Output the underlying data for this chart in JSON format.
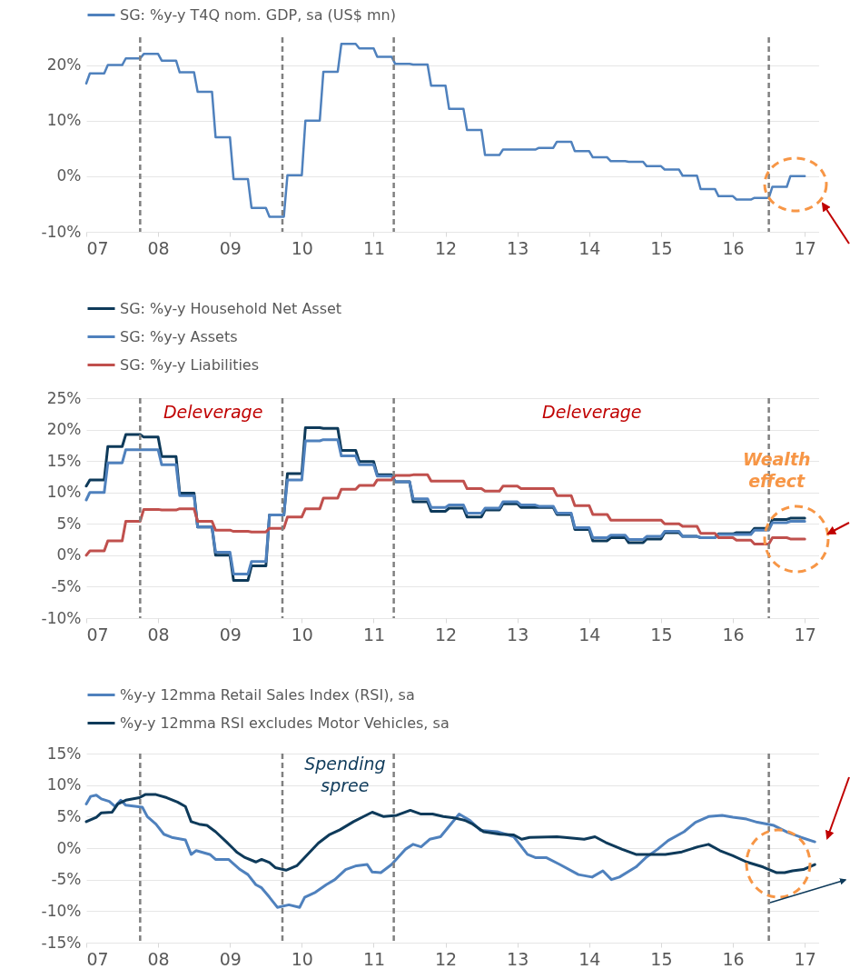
{
  "chart_data": [
    {
      "type": "line",
      "xlim": [
        2007,
        2017.2
      ],
      "ylim": [
        -10,
        25
      ],
      "xticks": [
        {
          "value": 2007,
          "label": "07"
        },
        {
          "value": 2008,
          "label": "08"
        },
        {
          "value": 2009,
          "label": "09"
        },
        {
          "value": 2010,
          "label": "10"
        },
        {
          "value": 2011,
          "label": "11"
        },
        {
          "value": 2012,
          "label": "12"
        },
        {
          "value": 2013,
          "label": "13"
        },
        {
          "value": 2014,
          "label": "14"
        },
        {
          "value": 2015,
          "label": "15"
        },
        {
          "value": 2016,
          "label": "16"
        },
        {
          "value": 2017,
          "label": "17"
        }
      ],
      "yticks": [
        {
          "value": -10,
          "label": "-10%"
        },
        {
          "value": 0,
          "label": "0%"
        },
        {
          "value": 10,
          "label": "10%"
        },
        {
          "value": 20,
          "label": "20%"
        }
      ],
      "grid": "y",
      "legend": "top",
      "line_style": "solid",
      "x": [
        2007,
        2007.05,
        2007.25,
        2007.3,
        2007.5,
        2007.55,
        2007.75,
        2007.8,
        2008,
        2008.05,
        2008.25,
        2008.3,
        2008.5,
        2008.55,
        2008.75,
        2008.8,
        2009,
        2009.05,
        2009.25,
        2009.3,
        2009.5,
        2009.55,
        2009.75,
        2009.8,
        2010,
        2010.05,
        2010.25,
        2010.3,
        2010.5,
        2010.55,
        2010.75,
        2010.8,
        2011,
        2011.05,
        2011.25,
        2011.3,
        2011.5,
        2011.55,
        2011.75,
        2011.8,
        2012,
        2012.05,
        2012.25,
        2012.3,
        2012.5,
        2012.55,
        2012.75,
        2012.8,
        2013,
        2013.05,
        2013.25,
        2013.3,
        2013.5,
        2013.55,
        2013.75,
        2013.8,
        2014,
        2014.05,
        2014.25,
        2014.3,
        2014.5,
        2014.55,
        2014.75,
        2014.8,
        2015,
        2015.05,
        2015.25,
        2015.3,
        2015.5,
        2015.55,
        2015.75,
        2015.8,
        2016,
        2016.05,
        2016.25,
        2016.3,
        2016.5,
        2016.55,
        2016.75,
        2016.8,
        2017
      ],
      "series": [
        {
          "name": "SG: %y-y T4Q nom. GDP, sa (US$ mn)",
          "color": "#4f81bd",
          "values": [
            16.7,
            18.5,
            18.5,
            20,
            20,
            21.2,
            21.2,
            22,
            22,
            20.8,
            20.8,
            18.7,
            18.7,
            15.2,
            15.2,
            7,
            7,
            -0.5,
            -0.5,
            -5.7,
            -5.7,
            -7.3,
            -7.3,
            0.2,
            0.2,
            10,
            10,
            18.8,
            18.8,
            23.8,
            23.8,
            23,
            23,
            21.5,
            21.5,
            20.2,
            20.2,
            20.1,
            20.1,
            16.3,
            16.3,
            12.1,
            12.1,
            8.3,
            8.3,
            3.8,
            3.8,
            4.8,
            4.8,
            4.8,
            4.8,
            5.1,
            5.1,
            6.2,
            6.2,
            4.5,
            4.5,
            3.4,
            3.4,
            2.7,
            2.7,
            2.6,
            2.6,
            1.8,
            1.8,
            1.2,
            1.2,
            0.1,
            0.1,
            -2.3,
            -2.3,
            -3.6,
            -3.6,
            -4.2,
            -4.2,
            -3.9,
            -3.9,
            -1.9,
            -1.9,
            0,
            0
          ]
        }
      ],
      "ref_lines": [
        {
          "axis": "x",
          "value": 2007.75,
          "color": "#808080",
          "line_style": "dashed"
        },
        {
          "axis": "x",
          "value": 2009.73,
          "color": "#808080",
          "line_style": "dashed"
        },
        {
          "axis": "x",
          "value": 2011.28,
          "color": "#808080",
          "line_style": "dashed"
        },
        {
          "axis": "x",
          "value": 2016.5,
          "color": "#808080",
          "line_style": "dashed"
        }
      ]
    },
    {
      "type": "line",
      "xlim": [
        2007,
        2017.2
      ],
      "ylim": [
        -10,
        25
      ],
      "xticks": [
        {
          "value": 2007,
          "label": "07"
        },
        {
          "value": 2008,
          "label": "08"
        },
        {
          "value": 2009,
          "label": "09"
        },
        {
          "value": 2010,
          "label": "10"
        },
        {
          "value": 2011,
          "label": "11"
        },
        {
          "value": 2012,
          "label": "12"
        },
        {
          "value": 2013,
          "label": "13"
        },
        {
          "value": 2014,
          "label": "14"
        },
        {
          "value": 2015,
          "label": "15"
        },
        {
          "value": 2016,
          "label": "16"
        },
        {
          "value": 2017,
          "label": "17"
        }
      ],
      "yticks": [
        {
          "value": -10,
          "label": "-10%"
        },
        {
          "value": -5,
          "label": "-5%"
        },
        {
          "value": 0,
          "label": "0%"
        },
        {
          "value": 5,
          "label": "5%"
        },
        {
          "value": 10,
          "label": "10%"
        },
        {
          "value": 15,
          "label": "15%"
        },
        {
          "value": 20,
          "label": "20%"
        },
        {
          "value": 25,
          "label": "25%"
        }
      ],
      "grid": "y",
      "legend": "top",
      "line_style": "solid",
      "x": [
        2007,
        2007.05,
        2007.25,
        2007.3,
        2007.5,
        2007.55,
        2007.75,
        2007.8,
        2008,
        2008.05,
        2008.25,
        2008.3,
        2008.5,
        2008.55,
        2008.75,
        2008.8,
        2009,
        2009.05,
        2009.25,
        2009.3,
        2009.5,
        2009.55,
        2009.75,
        2009.8,
        2010,
        2010.05,
        2010.25,
        2010.3,
        2010.5,
        2010.55,
        2010.75,
        2010.8,
        2011,
        2011.05,
        2011.25,
        2011.3,
        2011.5,
        2011.55,
        2011.75,
        2011.8,
        2012,
        2012.05,
        2012.25,
        2012.3,
        2012.5,
        2012.55,
        2012.75,
        2012.8,
        2013,
        2013.05,
        2013.25,
        2013.3,
        2013.5,
        2013.55,
        2013.75,
        2013.8,
        2014,
        2014.05,
        2014.25,
        2014.3,
        2014.5,
        2014.55,
        2014.75,
        2014.8,
        2015,
        2015.05,
        2015.25,
        2015.3,
        2015.5,
        2015.55,
        2015.75,
        2015.8,
        2016,
        2016.05,
        2016.25,
        2016.3,
        2016.5,
        2016.55,
        2016.75,
        2016.8,
        2017
      ],
      "series": [
        {
          "name": "SG: %y-y Household Net Asset",
          "color": "#0e3a5a",
          "values": [
            11,
            12,
            12,
            17.3,
            17.3,
            19.2,
            19.2,
            18.8,
            18.8,
            15.7,
            15.7,
            9.9,
            9.9,
            4.5,
            4.5,
            0,
            0,
            -4,
            -4,
            -1.7,
            -1.7,
            6.4,
            6.4,
            13,
            13,
            20.3,
            20.3,
            20.2,
            20.2,
            16.7,
            16.7,
            14.9,
            14.9,
            12.8,
            12.8,
            11.7,
            11.7,
            8.5,
            8.5,
            7,
            7,
            7.5,
            7.5,
            6.1,
            6.1,
            7.2,
            7.2,
            8.2,
            8.2,
            7.6,
            7.6,
            7.6,
            7.6,
            6.5,
            6.5,
            4.1,
            4.1,
            2.3,
            2.3,
            2.8,
            2.8,
            2,
            2,
            2.6,
            2.6,
            3.6,
            3.6,
            3,
            3,
            2.8,
            2.8,
            3.4,
            3.4,
            3.6,
            3.6,
            4.3,
            4.3,
            5.7,
            5.7,
            5.9,
            5.9
          ]
        },
        {
          "name": "SG: %y-y Assets",
          "color": "#4f81bd",
          "values": [
            8.8,
            10,
            10,
            14.7,
            14.7,
            16.8,
            16.8,
            16.8,
            16.8,
            14.4,
            14.4,
            9.5,
            9.5,
            4.5,
            4.5,
            0.5,
            0.5,
            -3,
            -3,
            -1,
            -1,
            6.4,
            6.4,
            12,
            12,
            18.2,
            18.2,
            18.4,
            18.4,
            15.8,
            15.8,
            14.4,
            14.4,
            12.6,
            12.6,
            11.7,
            11.7,
            9,
            9,
            7.6,
            7.6,
            8,
            8,
            6.7,
            6.7,
            7.5,
            7.5,
            8.5,
            8.5,
            8,
            8,
            7.8,
            7.8,
            6.7,
            6.7,
            4.4,
            4.4,
            2.8,
            2.8,
            3.2,
            3.2,
            2.5,
            2.5,
            3,
            3,
            3.8,
            3.8,
            3,
            3,
            2.8,
            2.8,
            3.3,
            3.3,
            3.3,
            3.3,
            4,
            4,
            5.2,
            5.2,
            5.4,
            5.4
          ]
        },
        {
          "name": "SG: %y-y Liabilities",
          "color": "#c0504d",
          "values": [
            0,
            0.7,
            0.7,
            2.3,
            2.3,
            5.4,
            5.4,
            7.3,
            7.3,
            7.2,
            7.2,
            7.4,
            7.4,
            5.4,
            5.4,
            4,
            4,
            3.8,
            3.8,
            3.7,
            3.7,
            4.3,
            4.3,
            6.1,
            6.1,
            7.4,
            7.4,
            9.1,
            9.1,
            10.5,
            10.5,
            11.1,
            11.1,
            12,
            12,
            12.7,
            12.7,
            12.8,
            12.8,
            11.8,
            11.8,
            11.8,
            11.8,
            10.6,
            10.6,
            10.2,
            10.2,
            11,
            11,
            10.6,
            10.6,
            10.6,
            10.6,
            9.5,
            9.5,
            7.9,
            7.9,
            6.5,
            6.5,
            5.6,
            5.6,
            5.6,
            5.6,
            5.6,
            5.6,
            5,
            5,
            4.6,
            4.6,
            3.5,
            3.5,
            2.8,
            2.8,
            2.4,
            2.4,
            1.8,
            1.8,
            2.8,
            2.8,
            2.6,
            2.6
          ]
        }
      ],
      "ref_lines": [
        {
          "axis": "x",
          "value": 2007.75,
          "color": "#808080",
          "line_style": "dashed"
        },
        {
          "axis": "x",
          "value": 2009.73,
          "color": "#808080",
          "line_style": "dashed"
        },
        {
          "axis": "x",
          "value": 2011.28,
          "color": "#808080",
          "line_style": "dashed"
        },
        {
          "axis": "x",
          "value": 2016.5,
          "color": "#808080",
          "line_style": "dashed"
        }
      ],
      "annotations": [
        "Deleverage",
        "Deleverage",
        "Wealth effect"
      ]
    },
    {
      "type": "line",
      "xlim": [
        2007,
        2017.2
      ],
      "ylim": [
        -15,
        15
      ],
      "xticks": [
        {
          "value": 2007,
          "label": "07"
        },
        {
          "value": 2008,
          "label": "08"
        },
        {
          "value": 2009,
          "label": "09"
        },
        {
          "value": 2010,
          "label": "10"
        },
        {
          "value": 2011,
          "label": "11"
        },
        {
          "value": 2012,
          "label": "12"
        },
        {
          "value": 2013,
          "label": "13"
        },
        {
          "value": 2014,
          "label": "14"
        },
        {
          "value": 2015,
          "label": "15"
        },
        {
          "value": 2016,
          "label": "16"
        },
        {
          "value": 2017,
          "label": "17"
        }
      ],
      "yticks": [
        {
          "value": -15,
          "label": "-15%"
        },
        {
          "value": -10,
          "label": "-10%"
        },
        {
          "value": -5,
          "label": "-5%"
        },
        {
          "value": 0,
          "label": "0%"
        },
        {
          "value": 5,
          "label": "5%"
        },
        {
          "value": 10,
          "label": "10%"
        },
        {
          "value": 15,
          "label": "15%"
        }
      ],
      "grid": "y",
      "legend": "top",
      "line_style": "solid",
      "series": [
        {
          "name": "%y-y 12mma Retail Sales Index (RSI), sa",
          "color": "#4f81bd",
          "x": [
            2007,
            2007.06,
            2007.14,
            2007.21,
            2007.32,
            2007.4,
            2007.48,
            2007.55,
            2007.78,
            2007.85,
            2007.97,
            2008.08,
            2008.19,
            2008.38,
            2008.46,
            2008.53,
            2008.72,
            2008.8,
            2008.98,
            2009.14,
            2009.25,
            2009.36,
            2009.44,
            2009.55,
            2009.66,
            2009.82,
            2009.97,
            2010.04,
            2010.19,
            2010.34,
            2010.46,
            2010.61,
            2010.76,
            2010.91,
            2010.98,
            2011.1,
            2011.25,
            2011.44,
            2011.55,
            2011.66,
            2011.78,
            2011.93,
            2012.19,
            2012.34,
            2012.49,
            2012.72,
            2012.95,
            2013.14,
            2013.25,
            2013.4,
            2013.59,
            2013.85,
            2014.04,
            2014.19,
            2014.31,
            2014.42,
            2014.65,
            2014.8,
            2014.95,
            2015.1,
            2015.32,
            2015.48,
            2015.66,
            2015.85,
            2016,
            2016.19,
            2016.34,
            2016.57,
            2016.76,
            2016.95,
            2017.14
          ],
          "values": [
            7,
            8.2,
            8.4,
            7.8,
            7.4,
            6.6,
            7.6,
            6.8,
            6.5,
            5,
            3.8,
            2.2,
            1.7,
            1.3,
            -1,
            -0.4,
            -1,
            -1.8,
            -1.8,
            -3.4,
            -4.2,
            -5.8,
            -6.3,
            -7.8,
            -9.4,
            -9,
            -9.4,
            -7.8,
            -7,
            -5.8,
            -5,
            -3.4,
            -2.8,
            -2.6,
            -3.8,
            -3.9,
            -2.6,
            -0.2,
            0.6,
            0.2,
            1.4,
            1.8,
            5.4,
            4.4,
            2.8,
            2.6,
            1.8,
            -1,
            -1.5,
            -1.5,
            -2.6,
            -4.2,
            -4.6,
            -3.6,
            -5,
            -4.6,
            -3,
            -1.4,
            -0.2,
            1.2,
            2.6,
            4.1,
            5,
            5.2,
            4.9,
            4.6,
            4.1,
            3.6,
            2.5,
            1.7,
            1
          ]
        },
        {
          "name": "%y-y 12mma RSI excludes Motor Vehicles, sa",
          "color": "#0e3a5a",
          "x": [
            2007,
            2007.14,
            2007.21,
            2007.36,
            2007.44,
            2007.55,
            2007.74,
            2007.82,
            2007.97,
            2008.12,
            2008.27,
            2008.38,
            2008.46,
            2008.57,
            2008.68,
            2008.8,
            2008.95,
            2009.1,
            2009.21,
            2009.36,
            2009.44,
            2009.55,
            2009.63,
            2009.78,
            2009.93,
            2010.08,
            2010.23,
            2010.38,
            2010.53,
            2010.72,
            2010.91,
            2010.98,
            2011.14,
            2011.32,
            2011.51,
            2011.66,
            2011.82,
            2011.97,
            2012.12,
            2012.27,
            2012.38,
            2012.53,
            2012.76,
            2012.95,
            2013.06,
            2013.17,
            2013.55,
            2013.66,
            2013.93,
            2014.08,
            2014.23,
            2014.46,
            2014.65,
            2014.8,
            2015.06,
            2015.29,
            2015.51,
            2015.66,
            2015.82,
            2016,
            2016.19,
            2016.42,
            2016.61,
            2016.72,
            2016.83,
            2016.98,
            2017.14
          ],
          "values": [
            4.2,
            4.9,
            5.6,
            5.7,
            7,
            7.6,
            8,
            8.5,
            8.5,
            8,
            7.3,
            6.6,
            4.2,
            3.8,
            3.6,
            2.6,
            1,
            -0.7,
            -1.5,
            -2.2,
            -1.8,
            -2.3,
            -3.1,
            -3.5,
            -2.8,
            -1,
            0.8,
            2.1,
            2.9,
            4.2,
            5.3,
            5.7,
            5,
            5.2,
            6,
            5.4,
            5.4,
            5,
            4.8,
            4.4,
            3.8,
            2.6,
            2.2,
            2.1,
            1.4,
            1.7,
            1.8,
            1.7,
            1.4,
            1.8,
            0.9,
            -0.2,
            -1,
            -1,
            -1,
            -0.6,
            0.2,
            0.6,
            -0.4,
            -1.2,
            -2.2,
            -3,
            -3.9,
            -3.9,
            -3.6,
            -3.4,
            -2.6
          ]
        }
      ],
      "ref_lines": [
        {
          "axis": "x",
          "value": 2007.75,
          "color": "#808080",
          "line_style": "dashed"
        },
        {
          "axis": "x",
          "value": 2009.73,
          "color": "#808080",
          "line_style": "dashed"
        },
        {
          "axis": "x",
          "value": 2011.28,
          "color": "#808080",
          "line_style": "dashed"
        },
        {
          "axis": "x",
          "value": 2016.5,
          "color": "#808080",
          "line_style": "dashed"
        }
      ],
      "annotations": [
        "Spending spree"
      ]
    }
  ]
}
